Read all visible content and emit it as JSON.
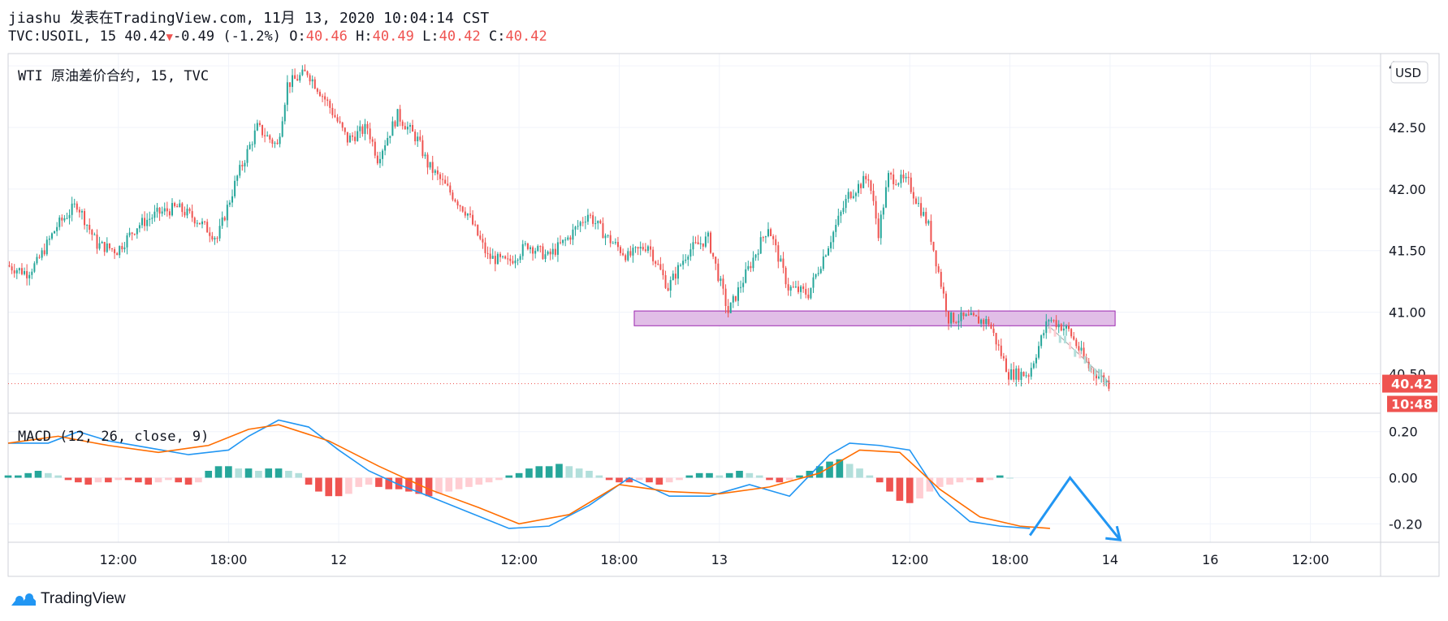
{
  "header": {
    "line1": "jiashu 发表在TradingView.com, 11月 13, 2020 10:04:14 CST",
    "symbol": "TVC:USOIL, 15",
    "last": "40.42",
    "arrow": "▼",
    "change": "-0.49 (-1.2%)",
    "o_label": "O:",
    "o": "40.46",
    "h_label": "H:",
    "h": "40.49",
    "l_label": "L:",
    "l": "40.42",
    "c_label": "C:",
    "c": "40.42"
  },
  "colors": {
    "up": "#26a69a",
    "down": "#ef5350",
    "zone_fill": "#e1bee7",
    "zone_border": "#9c27b0",
    "macd_line": "#2196f3",
    "signal_line": "#ff6d00",
    "arrow": "#2196f3",
    "price_tag": "#ef5350",
    "hist_up_strong": "#26a69a",
    "hist_up_weak": "#b2dfdb",
    "hist_down_strong": "#ef5350",
    "hist_down_weak": "#ffcdd2"
  },
  "currency_button": "USD",
  "logo_text": "TradingView",
  "logo_icon": "tradingview-cloud-icon",
  "chart_data": {
    "type": "candlestick",
    "panes": [
      {
        "id": "price",
        "title": "WTI 原油差价合约, 15, TVC",
        "ylim": [
          40.18,
          43.1
        ],
        "yticks": [
          "43.00",
          "42.50",
          "42.00",
          "41.50",
          "41.00",
          "40.50"
        ],
        "yticks_values": [
          43.0,
          42.5,
          42.0,
          41.5,
          41.0,
          40.5
        ],
        "last_price": 40.42,
        "last_price_label": "40.42",
        "countdown_label": "10:48",
        "zone": {
          "x_start": 62.5,
          "x_end": 110.5,
          "y_low": 40.89,
          "y_high": 41.01
        },
        "path": [
          [
            0,
            41.38
          ],
          [
            2,
            41.32
          ],
          [
            3,
            41.4
          ],
          [
            5,
            41.7
          ],
          [
            7,
            41.88
          ],
          [
            9,
            41.55
          ],
          [
            11,
            41.5
          ],
          [
            13,
            41.7
          ],
          [
            15,
            41.8
          ],
          [
            17,
            41.85
          ],
          [
            19,
            41.75
          ],
          [
            21,
            41.6
          ],
          [
            23,
            42.1
          ],
          [
            25,
            42.5
          ],
          [
            27,
            42.35
          ],
          [
            28,
            42.85
          ],
          [
            30,
            42.95
          ],
          [
            32,
            42.7
          ],
          [
            34,
            42.4
          ],
          [
            36,
            42.5
          ],
          [
            37,
            42.25
          ],
          [
            39,
            42.6
          ],
          [
            41,
            42.4
          ],
          [
            42,
            42.2
          ],
          [
            44,
            42.0
          ],
          [
            46,
            41.8
          ],
          [
            48,
            41.45
          ],
          [
            50,
            41.4
          ],
          [
            52,
            41.55
          ],
          [
            54,
            41.45
          ],
          [
            56,
            41.6
          ],
          [
            58,
            41.8
          ],
          [
            60,
            41.6
          ],
          [
            62,
            41.45
          ],
          [
            64,
            41.55
          ],
          [
            66,
            41.2
          ],
          [
            68,
            41.5
          ],
          [
            70,
            41.6
          ],
          [
            72,
            41.0
          ],
          [
            74,
            41.35
          ],
          [
            76,
            41.7
          ],
          [
            78,
            41.2
          ],
          [
            80,
            41.15
          ],
          [
            82,
            41.55
          ],
          [
            84,
            41.95
          ],
          [
            86,
            42.1
          ],
          [
            87,
            41.65
          ],
          [
            88,
            42.1
          ],
          [
            90,
            42.05
          ],
          [
            92,
            41.7
          ],
          [
            94,
            40.95
          ],
          [
            96,
            40.95
          ],
          [
            98,
            40.92
          ],
          [
            100,
            40.5
          ],
          [
            102,
            40.5
          ],
          [
            104,
            40.95
          ],
          [
            106,
            40.85
          ],
          [
            108,
            40.55
          ],
          [
            110,
            40.42
          ]
        ],
        "candle_count": 110,
        "ghost_projection": [
          [
            104,
            40.88
          ],
          [
            107,
            40.65
          ],
          [
            110,
            40.42
          ]
        ]
      },
      {
        "id": "macd",
        "title": "MACD (12, 26, close, 9)",
        "ylim": [
          -0.28,
          0.28
        ],
        "yticks": [
          "0.20",
          "0.00",
          "-0.20"
        ],
        "yticks_values": [
          0.2,
          0.0,
          -0.2
        ],
        "macd": [
          [
            0,
            0.15
          ],
          [
            4,
            0.15
          ],
          [
            7,
            0.2
          ],
          [
            10,
            0.16
          ],
          [
            14,
            0.13
          ],
          [
            18,
            0.1
          ],
          [
            22,
            0.12
          ],
          [
            24,
            0.18
          ],
          [
            27,
            0.25
          ],
          [
            30,
            0.22
          ],
          [
            33,
            0.12
          ],
          [
            36,
            0.03
          ],
          [
            39,
            -0.03
          ],
          [
            42,
            -0.08
          ],
          [
            46,
            -0.15
          ],
          [
            50,
            -0.22
          ],
          [
            54,
            -0.21
          ],
          [
            58,
            -0.12
          ],
          [
            62,
            0.0
          ],
          [
            66,
            -0.08
          ],
          [
            70,
            -0.08
          ],
          [
            74,
            -0.03
          ],
          [
            78,
            -0.08
          ],
          [
            82,
            0.1
          ],
          [
            84,
            0.15
          ],
          [
            87,
            0.14
          ],
          [
            90,
            0.12
          ],
          [
            93,
            -0.08
          ],
          [
            96,
            -0.19
          ],
          [
            99,
            -0.21
          ],
          [
            102,
            -0.22
          ]
        ],
        "signal": [
          [
            0,
            0.15
          ],
          [
            5,
            0.18
          ],
          [
            10,
            0.14
          ],
          [
            15,
            0.11
          ],
          [
            20,
            0.14
          ],
          [
            24,
            0.21
          ],
          [
            27,
            0.23
          ],
          [
            32,
            0.16
          ],
          [
            37,
            0.05
          ],
          [
            42,
            -0.05
          ],
          [
            47,
            -0.13
          ],
          [
            51,
            -0.2
          ],
          [
            56,
            -0.16
          ],
          [
            61,
            -0.03
          ],
          [
            66,
            -0.06
          ],
          [
            71,
            -0.07
          ],
          [
            76,
            -0.04
          ],
          [
            81,
            0.02
          ],
          [
            85,
            0.12
          ],
          [
            89,
            0.11
          ],
          [
            93,
            -0.05
          ],
          [
            97,
            -0.17
          ],
          [
            101,
            -0.21
          ],
          [
            104,
            -0.22
          ]
        ],
        "histogram": [
          [
            0,
            0.01
          ],
          [
            1,
            0.01
          ],
          [
            2,
            0.02
          ],
          [
            3,
            0.03
          ],
          [
            4,
            0.02
          ],
          [
            5,
            0.01
          ],
          [
            6,
            -0.01
          ],
          [
            7,
            -0.02
          ],
          [
            8,
            -0.03
          ],
          [
            9,
            -0.02
          ],
          [
            10,
            -0.02
          ],
          [
            11,
            -0.01
          ],
          [
            12,
            -0.01
          ],
          [
            13,
            -0.02
          ],
          [
            14,
            -0.03
          ],
          [
            15,
            -0.02
          ],
          [
            16,
            -0.01
          ],
          [
            17,
            -0.02
          ],
          [
            18,
            -0.03
          ],
          [
            19,
            -0.02
          ],
          [
            20,
            0.03
          ],
          [
            21,
            0.05
          ],
          [
            22,
            0.05
          ],
          [
            23,
            0.04
          ],
          [
            24,
            0.04
          ],
          [
            25,
            0.03
          ],
          [
            26,
            0.04
          ],
          [
            27,
            0.04
          ],
          [
            28,
            0.03
          ],
          [
            29,
            0.02
          ],
          [
            30,
            -0.03
          ],
          [
            31,
            -0.06
          ],
          [
            32,
            -0.08
          ],
          [
            33,
            -0.08
          ],
          [
            34,
            -0.07
          ],
          [
            35,
            -0.04
          ],
          [
            36,
            -0.03
          ],
          [
            37,
            -0.04
          ],
          [
            38,
            -0.05
          ],
          [
            39,
            -0.05
          ],
          [
            40,
            -0.06
          ],
          [
            41,
            -0.07
          ],
          [
            42,
            -0.08
          ],
          [
            43,
            -0.07
          ],
          [
            44,
            -0.06
          ],
          [
            45,
            -0.05
          ],
          [
            46,
            -0.04
          ],
          [
            47,
            -0.03
          ],
          [
            48,
            -0.02
          ],
          [
            49,
            -0.01
          ],
          [
            50,
            0.01
          ],
          [
            51,
            0.02
          ],
          [
            52,
            0.04
          ],
          [
            53,
            0.05
          ],
          [
            54,
            0.05
          ],
          [
            55,
            0.06
          ],
          [
            56,
            0.05
          ],
          [
            57,
            0.04
          ],
          [
            58,
            0.03
          ],
          [
            59,
            0.01
          ],
          [
            60,
            -0.01
          ],
          [
            61,
            -0.02
          ],
          [
            62,
            -0.02
          ],
          [
            63,
            -0.01
          ],
          [
            64,
            -0.02
          ],
          [
            65,
            -0.03
          ],
          [
            66,
            -0.02
          ],
          [
            67,
            -0.01
          ],
          [
            68,
            0.01
          ],
          [
            69,
            0.02
          ],
          [
            70,
            0.02
          ],
          [
            71,
            0.01
          ],
          [
            72,
            0.02
          ],
          [
            73,
            0.03
          ],
          [
            74,
            0.02
          ],
          [
            75,
            0.01
          ],
          [
            76,
            -0.01
          ],
          [
            77,
            -0.02
          ],
          [
            78,
            -0.01
          ],
          [
            79,
            0.01
          ],
          [
            80,
            0.03
          ],
          [
            81,
            0.05
          ],
          [
            82,
            0.07
          ],
          [
            83,
            0.08
          ],
          [
            84,
            0.06
          ],
          [
            85,
            0.04
          ],
          [
            86,
            0.01
          ],
          [
            87,
            -0.02
          ],
          [
            88,
            -0.06
          ],
          [
            89,
            -0.1
          ],
          [
            90,
            -0.11
          ],
          [
            91,
            -0.09
          ],
          [
            92,
            -0.06
          ],
          [
            93,
            -0.04
          ],
          [
            94,
            -0.03
          ],
          [
            95,
            -0.02
          ],
          [
            96,
            -0.01
          ],
          [
            97,
            -0.02
          ],
          [
            98,
            -0.01
          ],
          [
            99,
            0.01
          ],
          [
            100,
            0.0
          ]
        ],
        "annotation_arrow": [
          [
            102,
            -0.25
          ],
          [
            106,
            0.0
          ],
          [
            111,
            -0.27
          ]
        ]
      }
    ],
    "xticks": [
      {
        "x": 11,
        "label": "12:00"
      },
      {
        "x": 22,
        "label": "18:00"
      },
      {
        "x": 33,
        "label": "12"
      },
      {
        "x": 51,
        "label": "12:00"
      },
      {
        "x": 61,
        "label": "18:00"
      },
      {
        "x": 71,
        "label": "13"
      },
      {
        "x": 90,
        "label": "12:00"
      },
      {
        "x": 100,
        "label": "18:00"
      },
      {
        "x": 110,
        "label": "14"
      },
      {
        "x": 120,
        "label": "16"
      },
      {
        "x": 130,
        "label": "12:00"
      }
    ],
    "xlim": [
      0,
      137
    ],
    "grid": true
  }
}
